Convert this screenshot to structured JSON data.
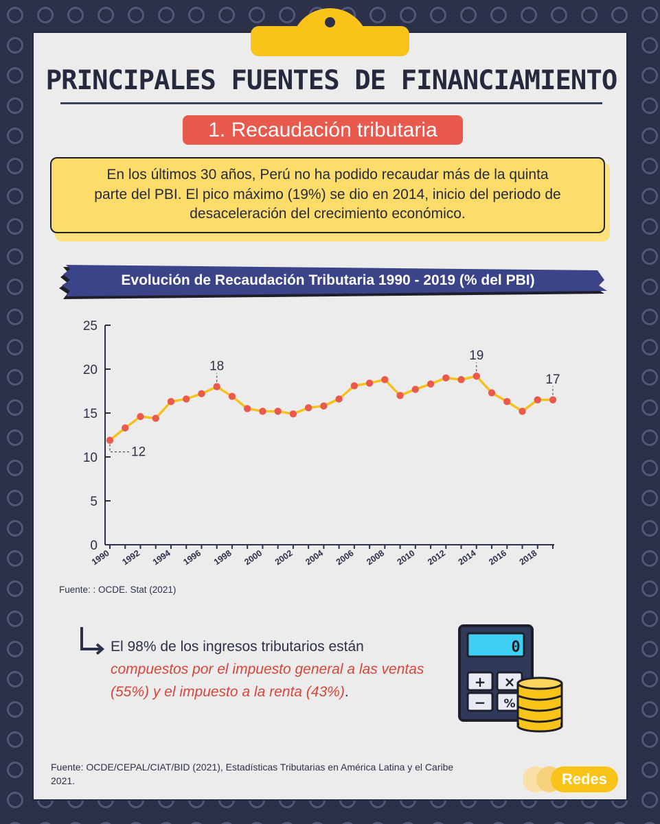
{
  "header": {
    "title": "PRINCIPALES FUENTES DE FINANCIAMIENTO",
    "section_badge": "1. Recaudación tributaria"
  },
  "intro": {
    "line1": "En los últimos 30 años, Perú no ha podido recaudar más de la quinta",
    "line2": "parte del PBI. El pico máximo (19%) se dio en 2014, inicio del periodo de",
    "line3": "desaceleración del crecimiento económico."
  },
  "chart_data": {
    "type": "line",
    "title": "Evolución de Recaudación Tributaria 1990 - 2019 (% del PBI)",
    "x": [
      1990,
      1991,
      1992,
      1993,
      1994,
      1995,
      1996,
      1997,
      1998,
      1999,
      2000,
      2001,
      2002,
      2003,
      2004,
      2005,
      2006,
      2007,
      2008,
      2009,
      2010,
      2011,
      2012,
      2013,
      2014,
      2015,
      2016,
      2017,
      2018,
      2019
    ],
    "y": [
      11.9,
      13.3,
      14.6,
      14.4,
      16.3,
      16.6,
      17.2,
      18.0,
      16.9,
      15.5,
      15.2,
      15.2,
      14.9,
      15.6,
      15.8,
      16.6,
      18.1,
      18.4,
      18.8,
      17.0,
      17.7,
      18.3,
      19.0,
      18.8,
      19.2,
      17.3,
      16.3,
      15.2,
      16.5,
      16.5
    ],
    "x_tick_labels": [
      "1990",
      "1992",
      "1994",
      "1996",
      "1998",
      "2000",
      "2002",
      "2004",
      "2006",
      "2008",
      "2010",
      "2012",
      "2014",
      "2016",
      "2018"
    ],
    "y_tick_labels": [
      "0",
      "5",
      "10",
      "15",
      "20",
      "25"
    ],
    "ylim": [
      0,
      25
    ],
    "annotations": [
      {
        "year": 1990,
        "label": "12"
      },
      {
        "year": 1997,
        "label": "18"
      },
      {
        "year": 2014,
        "label": "19"
      },
      {
        "year": 2019,
        "label": "17"
      }
    ],
    "source": "Fuente: : OCDE. Stat (2021)",
    "colors": {
      "line": "#f5c21b",
      "points": "#ea5a4c",
      "axis": "#2c3049"
    },
    "grid": false
  },
  "stat": {
    "plain": "El 98% de los ingresos tributarios están",
    "highlight": "compuestos por el impuesto general a las ventas (55%) y el impuesto a la renta (43%)",
    "end": "."
  },
  "calculator": {
    "display": "0",
    "keys": [
      "+",
      "×",
      "−",
      "%"
    ]
  },
  "footer": {
    "source": "Fuente: OCDE/CEPAL/CIAT/BID (2021), Estadísticas Tributarias en América Latina y el Caribe 2021.",
    "logo": "Redes"
  }
}
